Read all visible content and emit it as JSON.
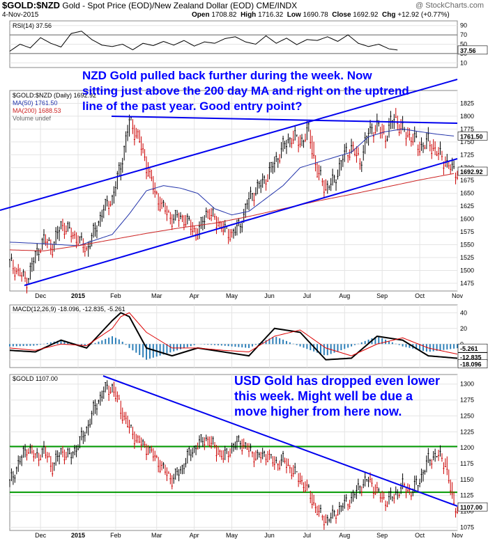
{
  "header": {
    "symbol": "$GOLD:$NZD",
    "description": "Gold - Spot Price (EOD)/New Zealand Dollar (EOD)  CME/INDX",
    "date": "4-Nov-2015",
    "open_label": "Open",
    "open": "1708.82",
    "high_label": "High",
    "high": "1716.32",
    "low_label": "Low",
    "low": "1690.78",
    "close_label": "Close",
    "close": "1692.92",
    "chg_label": "Chg",
    "chg": "+12.92 (+0.77%)",
    "watermark": "@ StockCharts.com"
  },
  "annotations": {
    "nzd_note": "NZD Gold pulled back further during the week. Now sitting just above the 200 day MA and right on the uptrend line of the past year. Good entry point?",
    "usd_note": "USD Gold has dropped even lower this week. Might well be due a move higher from here now."
  },
  "colors": {
    "price": "#000000",
    "up_bar": "#000000",
    "down_bar": "#cc0000",
    "ma50": "#2233aa",
    "ma200": "#cc2222",
    "trendline": "#0000ee",
    "support": "#009900",
    "macd": "#000000",
    "signal": "#dd0000",
    "histogram": "#2d7fb8",
    "rsi": "#000000",
    "rsi_fill": "#888888",
    "annotation": "#0000ff"
  },
  "chart_data": [
    {
      "type": "line",
      "title": "RSI(14)",
      "legend_label": "RSI(14)",
      "legend_value": "37.56",
      "ylim": [
        0,
        100
      ],
      "yticks": [
        10,
        30,
        50,
        70,
        90
      ],
      "reference_lines": [
        30,
        70
      ],
      "last_value": 37.56,
      "x_index": [
        0,
        6,
        12,
        18,
        24,
        30,
        36,
        42,
        48,
        54,
        60,
        66,
        72,
        78,
        84,
        90,
        96,
        102,
        108,
        114,
        120,
        126,
        132,
        138,
        144,
        150,
        156,
        162,
        168,
        174,
        180,
        186,
        192,
        198,
        204,
        210,
        216,
        222,
        227
      ],
      "values": [
        35,
        50,
        42,
        64,
        52,
        44,
        73,
        78,
        60,
        48,
        45,
        50,
        38,
        52,
        47,
        56,
        48,
        58,
        46,
        55,
        52,
        62,
        66,
        55,
        50,
        68,
        52,
        63,
        49,
        60,
        58,
        66,
        56,
        70,
        52,
        45,
        50,
        40,
        37.56
      ]
    },
    {
      "type": "line",
      "title": "$GOLD:$NZD (Daily) 1692.92",
      "legend": [
        "$GOLD:$NZD (Daily) 1692.92",
        "MA(50) 1761.50",
        "MA(200) 1688.53",
        "Volume undef"
      ],
      "ylim": [
        1460,
        1850
      ],
      "yticks": [
        1475,
        1500,
        1525,
        1550,
        1575,
        1600,
        1625,
        1650,
        1675,
        1700,
        1725,
        1750,
        1775,
        1800,
        1825
      ],
      "xticks": [
        "Dec",
        "2015",
        "Feb",
        "Mar",
        "Apr",
        "May",
        "Jun",
        "Jul",
        "Aug",
        "Sep",
        "Oct",
        "Nov"
      ],
      "xtick_index": [
        18,
        40,
        62,
        86,
        108,
        130,
        152,
        174,
        196,
        218,
        240,
        262
      ],
      "price_labels": [
        "1761.50",
        "1692.92"
      ],
      "series": [
        {
          "name": "$GOLD:$NZD",
          "x_index": [
            0,
            5,
            10,
            15,
            20,
            25,
            30,
            35,
            40,
            45,
            50,
            55,
            60,
            65,
            70,
            75,
            80,
            85,
            90,
            95,
            100,
            105,
            110,
            115,
            120,
            125,
            130,
            135,
            140,
            145,
            150,
            155,
            160,
            165,
            170,
            175,
            180,
            185,
            190,
            195,
            200,
            205,
            210,
            215,
            220,
            225,
            230,
            235,
            240,
            245,
            250,
            255,
            260
          ],
          "values": [
            1515,
            1495,
            1480,
            1530,
            1560,
            1545,
            1590,
            1575,
            1560,
            1540,
            1580,
            1620,
            1640,
            1705,
            1790,
            1760,
            1705,
            1650,
            1620,
            1600,
            1605,
            1590,
            1570,
            1615,
            1600,
            1580,
            1570,
            1590,
            1640,
            1660,
            1680,
            1710,
            1740,
            1760,
            1750,
            1770,
            1690,
            1660,
            1675,
            1720,
            1740,
            1710,
            1770,
            1780,
            1760,
            1800,
            1770,
            1760,
            1740,
            1750,
            1730,
            1710,
            1692.92
          ]
        },
        {
          "name": "MA(50)",
          "x_index": [
            0,
            20,
            40,
            60,
            70,
            80,
            90,
            100,
            110,
            120,
            130,
            140,
            150,
            160,
            170,
            180,
            190,
            200,
            210,
            220,
            230,
            240,
            250,
            260
          ],
          "values": [
            1555,
            1552,
            1548,
            1570,
            1610,
            1655,
            1665,
            1660,
            1650,
            1620,
            1608,
            1615,
            1640,
            1665,
            1700,
            1710,
            1720,
            1730,
            1760,
            1770,
            1775,
            1770,
            1765,
            1761.5
          ]
        },
        {
          "name": "MA(200)",
          "x_index": [
            0,
            20,
            40,
            60,
            80,
            100,
            120,
            140,
            160,
            180,
            200,
            220,
            240,
            260
          ],
          "values": [
            1540,
            1538,
            1548,
            1560,
            1572,
            1583,
            1592,
            1605,
            1620,
            1635,
            1648,
            1662,
            1676,
            1688.53
          ]
        }
      ]
    },
    {
      "type": "line",
      "title": "MACD(12,26,9)",
      "legend_values": [
        "-18.096",
        "-12.835",
        "-5.261"
      ],
      "ylim": [
        -30,
        50
      ],
      "yticks": [
        -20,
        0,
        20,
        40
      ],
      "price_labels": [
        "-5.261",
        "-12.835",
        "-18.096"
      ],
      "series": [
        {
          "name": "MACD",
          "x_index": [
            0,
            15,
            30,
            45,
            60,
            65,
            70,
            80,
            95,
            110,
            125,
            140,
            155,
            170,
            185,
            200,
            215,
            230,
            245,
            262
          ],
          "values": [
            -8,
            -10,
            5,
            -5,
            30,
            40,
            35,
            -5,
            -15,
            -5,
            -10,
            -15,
            20,
            15,
            -20,
            -18,
            10,
            5,
            -15,
            -18.096
          ]
        },
        {
          "name": "Signal",
          "x_index": [
            0,
            15,
            30,
            45,
            60,
            65,
            70,
            80,
            95,
            110,
            125,
            140,
            155,
            170,
            185,
            200,
            215,
            230,
            245,
            262
          ],
          "values": [
            -5,
            -8,
            0,
            -2,
            20,
            35,
            40,
            15,
            -5,
            -5,
            -8,
            -10,
            10,
            18,
            -5,
            -15,
            0,
            8,
            -5,
            -12.835
          ]
        },
        {
          "name": "Histogram",
          "x_index": [
            0,
            15,
            30,
            45,
            60,
            65,
            70,
            80,
            95,
            110,
            125,
            140,
            155,
            170,
            185,
            200,
            215,
            230,
            245,
            262
          ],
          "values": [
            -3,
            -2,
            5,
            -3,
            10,
            5,
            -5,
            -20,
            -10,
            0,
            -2,
            -5,
            10,
            -3,
            -15,
            -3,
            10,
            -3,
            -10,
            -5.261
          ]
        }
      ]
    },
    {
      "type": "line",
      "title": "$GOLD 1107.00",
      "legend_label": "$GOLD",
      "legend_value": "1107.00",
      "ylim": [
        1070,
        1315
      ],
      "yticks": [
        1075,
        1100,
        1125,
        1150,
        1175,
        1200,
        1225,
        1250,
        1275,
        1300
      ],
      "xticks": [
        "Dec",
        "2015",
        "Feb",
        "Mar",
        "Apr",
        "May",
        "Jun",
        "Jul",
        "Aug",
        "Sep",
        "Oct",
        "Nov"
      ],
      "xtick_index": [
        18,
        40,
        62,
        86,
        108,
        130,
        152,
        174,
        196,
        218,
        240,
        262
      ],
      "price_labels": [
        "1107.00"
      ],
      "support_lines": [
        1202,
        1130
      ],
      "series": [
        {
          "name": "$GOLD",
          "x_index": [
            0,
            5,
            10,
            15,
            20,
            25,
            30,
            35,
            40,
            45,
            50,
            55,
            60,
            65,
            70,
            75,
            80,
            85,
            90,
            95,
            100,
            105,
            110,
            115,
            120,
            125,
            130,
            135,
            140,
            145,
            150,
            155,
            160,
            165,
            170,
            175,
            180,
            185,
            190,
            195,
            200,
            205,
            210,
            215,
            220,
            225,
            230,
            235,
            240,
            245,
            250,
            255,
            260
          ],
          "values": [
            1145,
            1175,
            1200,
            1185,
            1195,
            1170,
            1195,
            1185,
            1205,
            1230,
            1265,
            1290,
            1295,
            1260,
            1230,
            1210,
            1200,
            1185,
            1165,
            1150,
            1165,
            1190,
            1205,
            1215,
            1200,
            1185,
            1200,
            1210,
            1195,
            1185,
            1190,
            1175,
            1180,
            1165,
            1150,
            1130,
            1100,
            1085,
            1095,
            1110,
            1120,
            1140,
            1150,
            1130,
            1115,
            1125,
            1140,
            1130,
            1150,
            1180,
            1190,
            1175,
            1107
          ]
        }
      ]
    }
  ]
}
